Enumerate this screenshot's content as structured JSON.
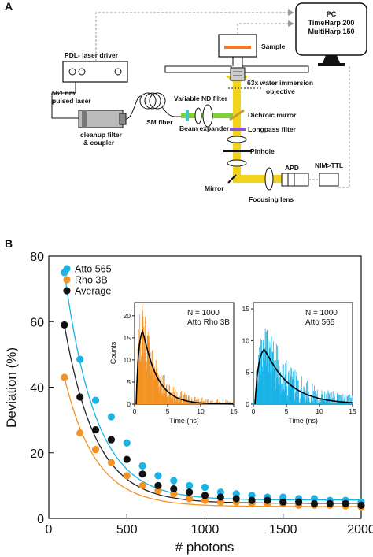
{
  "panel_a": {
    "letter": "A",
    "pc": {
      "line1": "PC",
      "line2": "TimeHarp 200",
      "line3": "MultiHarp 150"
    },
    "laser_driver": "PDL- laser driver",
    "sample": "Sample",
    "objective_line1": "63x water immersion",
    "objective_line2": "objective",
    "laser_line1": "561 nm",
    "laser_line2": "pulsed laser",
    "cleanup_line1": "cleanup filter",
    "cleanup_line2": "& coupler",
    "sm_fiber": "SM fiber",
    "nd_filter": "Variable ND filter",
    "dichroic": "Dichroic mirror",
    "beam_expander": "Beam expander",
    "longpass": "Longpass filter",
    "pinhole": "Pinhole",
    "apd": "APD",
    "nim_ttl": "NIM>TTL",
    "mirror": "Mirror",
    "focusing_lens": "Focusing lens",
    "colors": {
      "laser": "#7fd03b",
      "emission": "#f2d21b",
      "sample_bar": "#f07a2a",
      "longpass": "#8a55c8",
      "nd": "#3ec8c0"
    }
  },
  "panel_b": {
    "letter": "B"
  },
  "chart_data": [
    {
      "type": "scatter",
      "xlabel": "# photons",
      "ylabel": "Deviation (%)",
      "xlim": [
        0,
        2000
      ],
      "ylim": [
        0,
        80
      ],
      "xticks": [
        "0",
        "500",
        "1000",
        "1500",
        "2000"
      ],
      "yticks": [
        "0",
        "20",
        "40",
        "60",
        "80"
      ],
      "legend_position": "top-left",
      "x": [
        100,
        200,
        300,
        400,
        500,
        600,
        700,
        800,
        900,
        1000,
        1100,
        1200,
        1300,
        1400,
        1500,
        1600,
        1700,
        1800,
        1900,
        2000
      ],
      "series": [
        {
          "name": "Atto 565",
          "color": "#19b3e6",
          "fit_color": "#19b3e6",
          "values": [
            75,
            48.5,
            36,
            31,
            23,
            16,
            13,
            11.5,
            10,
            9.5,
            8,
            7.5,
            7,
            6.5,
            6.5,
            6,
            6,
            5.5,
            5.5,
            5
          ]
        },
        {
          "name": "Rho 3B",
          "color": "#f39325",
          "fit_color": "#f39325",
          "values": [
            43,
            26,
            21,
            17,
            13,
            10,
            8.5,
            7.5,
            6,
            5.5,
            5,
            5,
            4.5,
            4.5,
            4.5,
            4,
            4,
            4,
            3.8,
            3.5
          ]
        },
        {
          "name": " Average",
          "color": "#111111",
          "fit_color": "#222222",
          "values": [
            59,
            37,
            27,
            24,
            18,
            13.5,
            10,
            9,
            8,
            7,
            6.5,
            6,
            5.5,
            5.5,
            5,
            5,
            4.5,
            4.5,
            4.5,
            4
          ]
        }
      ],
      "fits": [
        {
          "series": "Atto 565",
          "y0": 5.6,
          "A": 94.4,
          "tau": 200
        },
        {
          "series": "Rho 3B",
          "y0": 3.6,
          "A": 58.7,
          "tau": 200
        },
        {
          "series": " Average",
          "y0": 4.6,
          "A": 76.2,
          "tau": 200
        }
      ]
    },
    {
      "type": "bar",
      "annotation_line1": "N = 1000",
      "annotation_line2": "Atto Rho 3B",
      "xlabel": "Time (ns)",
      "ylabel": "Counts",
      "xlim": [
        0,
        15
      ],
      "ylim": [
        0,
        23
      ],
      "xticks": [
        "0",
        "5",
        "10",
        "15"
      ],
      "yticks": [
        "0",
        "5",
        "10",
        "15",
        "20"
      ],
      "color": "#f39325",
      "fit_color": "#000000",
      "fit": {
        "amplitude": 16.5,
        "peak": 1.2,
        "rise": 0.35,
        "decay": 2.1
      }
    },
    {
      "type": "bar",
      "annotation_line1": "N = 1000",
      "annotation_line2": "Atto 565",
      "xlabel": "Time (ns)",
      "ylabel": "",
      "xlim": [
        0,
        15
      ],
      "ylim": [
        0,
        16
      ],
      "xticks": [
        "0",
        "5",
        "10",
        "15"
      ],
      "yticks": [
        "0",
        "5",
        "10",
        "15"
      ],
      "color": "#19b3e6",
      "fit_color": "#000000",
      "fit": {
        "amplitude": 8.6,
        "peak": 1.6,
        "rise": 0.5,
        "decay": 3.6
      }
    }
  ]
}
